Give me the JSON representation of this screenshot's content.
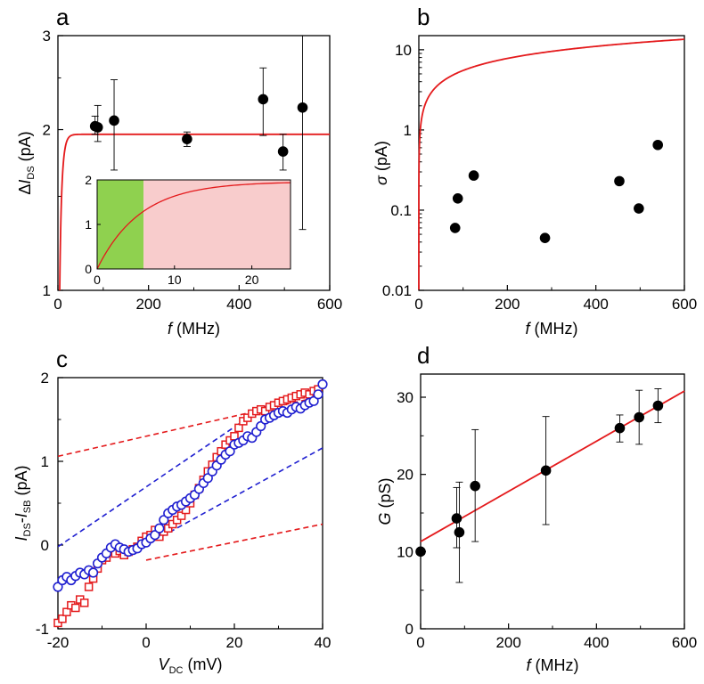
{
  "colors": {
    "fit": "#e41a1c",
    "marker": "#000000",
    "square": "#e41a1c",
    "circle": "#1f1fd0",
    "inset_green": "#8fd14f",
    "inset_pink": "#f8cccc"
  },
  "chart_data": [
    {
      "id": "a",
      "panel_label": "a",
      "type": "scatter",
      "yscale": "log",
      "xlabel": {
        "italic": "f",
        "rest": " (MHz)"
      },
      "ylabel": {
        "prefix": "Δ",
        "italic": "I",
        "sub": "DS",
        "rest": " (pA)"
      },
      "xlim": [
        0,
        600
      ],
      "ylim": [
        1,
        3
      ],
      "xticks": [
        0,
        200,
        400,
        600
      ],
      "xtick_labels": [
        "0",
        "200",
        "400",
        "600"
      ],
      "yticks": [
        1,
        2,
        3
      ],
      "ytick_labels": [
        "1",
        "2",
        "3"
      ],
      "points": [
        {
          "x": 82,
          "y": 2.03,
          "err_lo": 0.07,
          "err_hi": 0.09
        },
        {
          "x": 88,
          "y": 2.02,
          "err_lo": 0.12,
          "err_hi": 0.2
        },
        {
          "x": 124,
          "y": 2.08,
          "err_lo": 0.4,
          "err_hi": 0.4
        },
        {
          "x": 285,
          "y": 1.92,
          "err_lo": 0.06,
          "err_hi": 0.06
        },
        {
          "x": 453,
          "y": 2.28,
          "err_lo": 0.33,
          "err_hi": 0.33
        },
        {
          "x": 497,
          "y": 1.82,
          "err_lo": 0.14,
          "err_hi": 0.14
        },
        {
          "x": 540,
          "y": 2.2,
          "err_lo": 0.9,
          "err_hi": 1.5
        }
      ],
      "fit": {
        "saturation": 1.96,
        "rate_per_MHz": 0.18
      },
      "inset": {
        "xlim": [
          0,
          25
        ],
        "ylim": [
          0,
          2
        ],
        "xticks": [
          0,
          10,
          20
        ],
        "xtick_labels": [
          "0",
          "10",
          "20"
        ],
        "yticks": [
          0,
          1,
          2
        ],
        "ytick_labels": [
          "0",
          "1",
          "2"
        ],
        "green_region": [
          0,
          6
        ],
        "pink_region": [
          6,
          25
        ]
      }
    },
    {
      "id": "b",
      "panel_label": "b",
      "type": "scatter",
      "yscale": "log",
      "xlabel": {
        "italic": "f",
        "rest": " (MHz)"
      },
      "ylabel": {
        "prefix": "",
        "italic": "σ",
        "sub": "",
        "rest": " (pA)"
      },
      "xlim": [
        0,
        600
      ],
      "ylim": [
        0.01,
        15
      ],
      "xticks": [
        0,
        200,
        400,
        600
      ],
      "xtick_labels": [
        "0",
        "200",
        "400",
        "600"
      ],
      "yticks": [
        0.01,
        0.1,
        1,
        10
      ],
      "ytick_labels": [
        "0.01",
        "0.1",
        "1",
        "10"
      ],
      "points": [
        {
          "x": 82,
          "y": 0.06
        },
        {
          "x": 88,
          "y": 0.14
        },
        {
          "x": 124,
          "y": 0.27
        },
        {
          "x": 285,
          "y": 0.045
        },
        {
          "x": 453,
          "y": 0.23
        },
        {
          "x": 497,
          "y": 0.105
        },
        {
          "x": 540,
          "y": 0.65
        }
      ],
      "fit": {
        "type": "sqrt",
        "value_at_600": 13.5
      }
    },
    {
      "id": "c",
      "panel_label": "c",
      "type": "scatter",
      "yscale": "linear",
      "xlabel": {
        "italic": "V",
        "sub": "DC",
        "rest": " (mV)"
      },
      "ylabel": {
        "italic1": "I",
        "sub1": "DS",
        "dash": "-",
        "italic2": "I",
        "sub2": "SB",
        "rest": " (pA)"
      },
      "xlim": [
        -20,
        40
      ],
      "ylim": [
        -1,
        2
      ],
      "xticks": [
        -20,
        0,
        20,
        40
      ],
      "xtick_labels": [
        "-20",
        "0",
        "20",
        "40"
      ],
      "yticks": [
        -1,
        0,
        1,
        2
      ],
      "ytick_labels": [
        "-1",
        "0",
        "1",
        "2"
      ],
      "series": [
        {
          "name": "red squares",
          "marker": "square",
          "points": [
            [
              -20,
              -0.93
            ],
            [
              -19,
              -0.88
            ],
            [
              -18,
              -0.8
            ],
            [
              -17,
              -0.72
            ],
            [
              -16,
              -0.75
            ],
            [
              -15,
              -0.65
            ],
            [
              -14,
              -0.69
            ],
            [
              -13,
              -0.5
            ],
            [
              -12,
              -0.4
            ],
            [
              -11,
              -0.28
            ],
            [
              -10,
              -0.18
            ],
            [
              -9,
              -0.15
            ],
            [
              -8,
              -0.05
            ],
            [
              -7,
              -0.1
            ],
            [
              -6,
              -0.07
            ],
            [
              -5,
              -0.12
            ],
            [
              -4,
              -0.08
            ],
            [
              -3,
              -0.05
            ],
            [
              -2,
              -0.02
            ],
            [
              -1,
              0.05
            ],
            [
              0,
              0.1
            ],
            [
              1,
              0.12
            ],
            [
              2,
              0.18
            ],
            [
              3,
              0.1
            ],
            [
              4,
              0.16
            ],
            [
              5,
              0.2
            ],
            [
              6,
              0.25
            ],
            [
              7,
              0.3
            ],
            [
              8,
              0.35
            ],
            [
              9,
              0.42
            ],
            [
              10,
              0.5
            ],
            [
              11,
              0.6
            ],
            [
              12,
              0.68
            ],
            [
              13,
              0.78
            ],
            [
              14,
              0.88
            ],
            [
              15,
              0.96
            ],
            [
              16,
              1.05
            ],
            [
              17,
              1.12
            ],
            [
              18,
              1.2
            ],
            [
              19,
              1.25
            ],
            [
              20,
              1.3
            ],
            [
              21,
              1.4
            ],
            [
              22,
              1.48
            ],
            [
              23,
              1.52
            ],
            [
              24,
              1.57
            ],
            [
              25,
              1.6
            ],
            [
              26,
              1.62
            ],
            [
              27,
              1.6
            ],
            [
              28,
              1.65
            ],
            [
              29,
              1.67
            ],
            [
              30,
              1.7
            ],
            [
              31,
              1.72
            ],
            [
              32,
              1.74
            ],
            [
              33,
              1.76
            ],
            [
              34,
              1.78
            ],
            [
              35,
              1.8
            ],
            [
              36,
              1.82
            ],
            [
              37,
              1.8
            ],
            [
              38,
              1.84
            ],
            [
              39,
              1.86
            ]
          ]
        },
        {
          "name": "blue circles",
          "marker": "circle",
          "points": [
            [
              -20,
              -0.5
            ],
            [
              -19,
              -0.42
            ],
            [
              -18,
              -0.38
            ],
            [
              -17,
              -0.42
            ],
            [
              -16,
              -0.37
            ],
            [
              -15,
              -0.33
            ],
            [
              -14,
              -0.35
            ],
            [
              -13,
              -0.3
            ],
            [
              -12,
              -0.33
            ],
            [
              -11,
              -0.22
            ],
            [
              -10,
              -0.15
            ],
            [
              -9,
              -0.1
            ],
            [
              -8,
              -0.03
            ],
            [
              -7,
              0.01
            ],
            [
              -6,
              -0.03
            ],
            [
              -5,
              -0.05
            ],
            [
              -4,
              -0.08
            ],
            [
              -3,
              -0.06
            ],
            [
              -2,
              -0.04
            ],
            [
              -1,
              0.01
            ],
            [
              0,
              0.03
            ],
            [
              1,
              0.08
            ],
            [
              2,
              0.12
            ],
            [
              3,
              0.2
            ],
            [
              4,
              0.3
            ],
            [
              5,
              0.38
            ],
            [
              6,
              0.42
            ],
            [
              7,
              0.46
            ],
            [
              8,
              0.48
            ],
            [
              9,
              0.52
            ],
            [
              10,
              0.56
            ],
            [
              11,
              0.6
            ],
            [
              12,
              0.67
            ],
            [
              13,
              0.74
            ],
            [
              14,
              0.8
            ],
            [
              15,
              0.88
            ],
            [
              16,
              0.95
            ],
            [
              17,
              1.02
            ],
            [
              18,
              1.08
            ],
            [
              19,
              1.12
            ],
            [
              20,
              1.2
            ],
            [
              21,
              1.22
            ],
            [
              22,
              1.25
            ],
            [
              23,
              1.3
            ],
            [
              24,
              1.28
            ],
            [
              25,
              1.35
            ],
            [
              26,
              1.42
            ],
            [
              27,
              1.5
            ],
            [
              28,
              1.52
            ],
            [
              29,
              1.55
            ],
            [
              30,
              1.58
            ],
            [
              31,
              1.6
            ],
            [
              32,
              1.58
            ],
            [
              33,
              1.62
            ],
            [
              34,
              1.65
            ],
            [
              35,
              1.63
            ],
            [
              36,
              1.67
            ],
            [
              37,
              1.7
            ],
            [
              38,
              1.72
            ],
            [
              39,
              1.8
            ],
            [
              40,
              1.92
            ]
          ]
        }
      ],
      "dashed_lines": [
        {
          "color": "red",
          "x1": -20,
          "y1": 1.06,
          "x2": 40,
          "y2": 1.78
        },
        {
          "color": "red",
          "x1": 0,
          "y1": -0.18,
          "x2": 40,
          "y2": 0.25
        },
        {
          "color": "blue",
          "x1": -20,
          "y1": -0.02,
          "x2": 27,
          "y2": 1.66
        },
        {
          "color": "blue",
          "x1": 0,
          "y1": 0.0,
          "x2": 40,
          "y2": 1.16
        }
      ]
    },
    {
      "id": "d",
      "panel_label": "d",
      "type": "scatter",
      "yscale": "linear",
      "xlabel": {
        "italic": "f",
        "rest": " (MHz)"
      },
      "ylabel": {
        "prefix": "",
        "italic": "G",
        "sub": "",
        "rest": " (pS)"
      },
      "xlim": [
        0,
        600
      ],
      "ylim": [
        0,
        33
      ],
      "xticks": [
        0,
        200,
        400,
        600
      ],
      "xtick_labels": [
        "0",
        "200",
        "400",
        "600"
      ],
      "yticks": [
        0,
        10,
        20,
        30
      ],
      "ytick_labels": [
        "0",
        "10",
        "20",
        "30"
      ],
      "points": [
        {
          "x": 0,
          "y": 10,
          "err_lo": 0,
          "err_hi": 0
        },
        {
          "x": 82,
          "y": 14.3,
          "err_lo": 3.8,
          "err_hi": 4.0
        },
        {
          "x": 88,
          "y": 12.5,
          "err_lo": 6.5,
          "err_hi": 6.5
        },
        {
          "x": 124,
          "y": 18.5,
          "err_lo": 7.2,
          "err_hi": 7.3
        },
        {
          "x": 285,
          "y": 20.5,
          "err_lo": 7.0,
          "err_hi": 7.0
        },
        {
          "x": 453,
          "y": 26.0,
          "err_lo": 1.8,
          "err_hi": 1.7
        },
        {
          "x": 497,
          "y": 27.4,
          "err_lo": 3.5,
          "err_hi": 3.5
        },
        {
          "x": 540,
          "y": 28.9,
          "err_lo": 2.2,
          "err_hi": 2.2
        }
      ],
      "fit": {
        "type": "linear",
        "intercept": 11.3,
        "slope": 0.0325
      }
    }
  ]
}
